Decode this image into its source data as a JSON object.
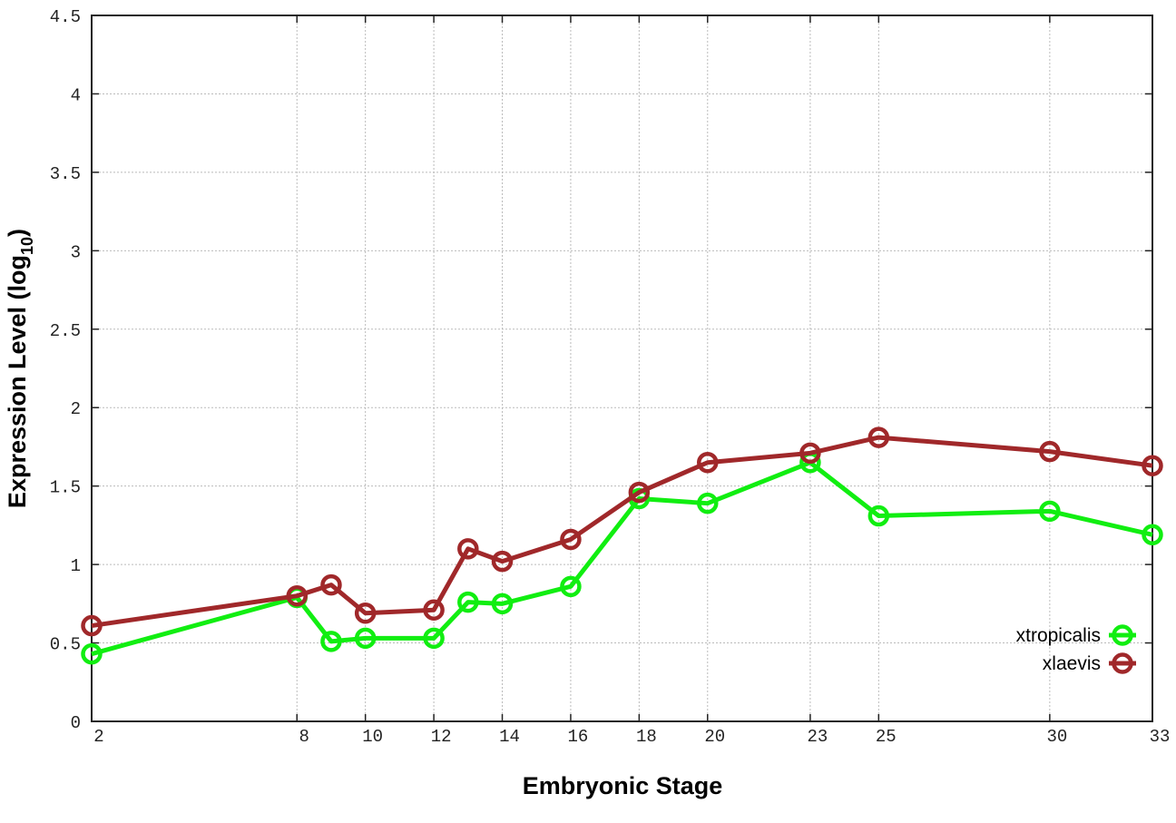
{
  "chart_data": {
    "type": "line",
    "title": "",
    "xlabel": "Embryonic Stage",
    "ylabel_main": "Expression Level (log",
    "ylabel_sub": "10",
    "ylabel_close": ")",
    "xlim": [
      2,
      33
    ],
    "ylim": [
      0,
      4.5
    ],
    "x": [
      2,
      8,
      9,
      10,
      12,
      13,
      14,
      16,
      18,
      20,
      23,
      25,
      30,
      33
    ],
    "xticks": [
      2,
      8,
      10,
      12,
      14,
      16,
      18,
      20,
      23,
      25,
      30,
      33
    ],
    "yticks": [
      "0",
      "0.5",
      "1",
      "1.5",
      "2",
      "2.5",
      "3",
      "3.5",
      "4",
      "4.5"
    ],
    "grid": true,
    "legend_position": "bottom-right",
    "series": [
      {
        "name": "xtropicalis",
        "color": "#11ee11",
        "values": [
          0.43,
          0.79,
          0.51,
          0.53,
          0.53,
          0.76,
          0.75,
          0.86,
          1.42,
          1.39,
          1.65,
          1.31,
          1.34,
          1.19
        ]
      },
      {
        "name": "xlaevis",
        "color": "#a0282a",
        "values": [
          0.61,
          0.8,
          0.87,
          0.69,
          0.71,
          1.1,
          1.02,
          1.16,
          1.46,
          1.65,
          1.71,
          1.81,
          1.72,
          1.63
        ]
      }
    ]
  }
}
